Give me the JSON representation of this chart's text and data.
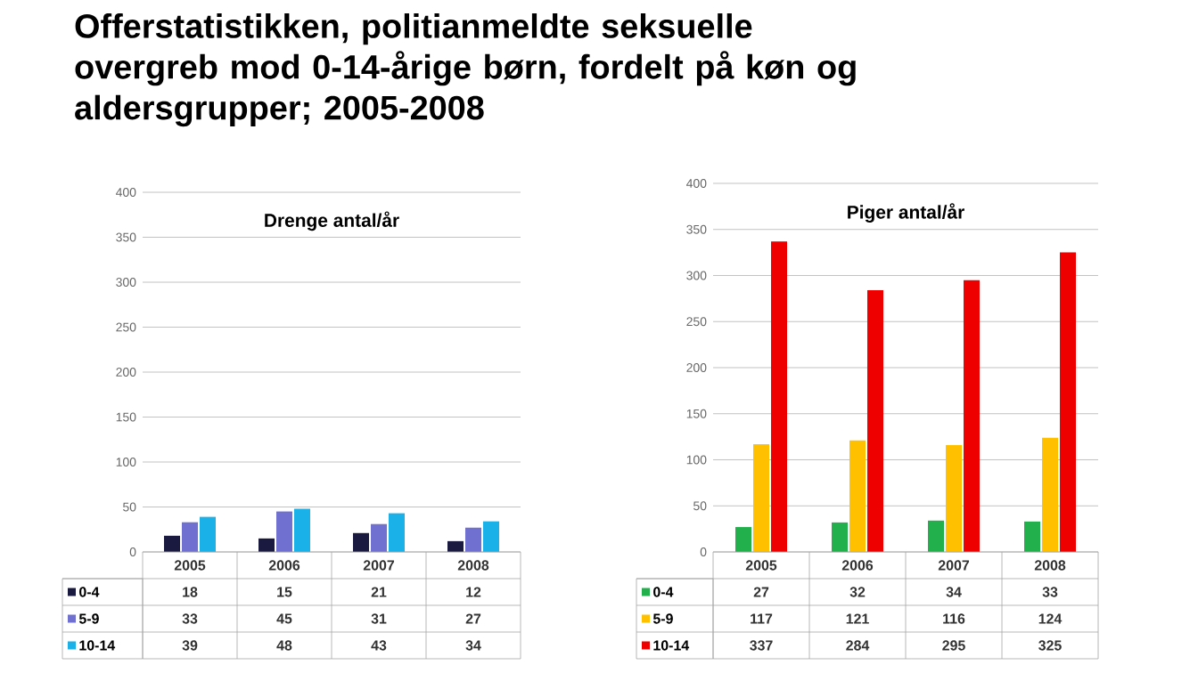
{
  "chart_data": [
    {
      "type": "bar",
      "title": "Offerstatistikken, politianmeldte seksuelle overgreb mod 0-14-årige børn, fordelt på køn og aldersgrupper; 2005-2008",
      "subtitle": "Drenge antal/år",
      "categories": [
        "2005",
        "2006",
        "2007",
        "2008"
      ],
      "series": [
        {
          "name": "0-4",
          "color": "#1a1a40",
          "values": [
            18,
            15,
            21,
            12
          ]
        },
        {
          "name": "5-9",
          "color": "#7070d0",
          "values": [
            33,
            45,
            31,
            27
          ]
        },
        {
          "name": "10-14",
          "color": "#1ab0e8",
          "values": [
            39,
            48,
            43,
            34
          ]
        }
      ],
      "ylim": [
        0,
        400
      ],
      "yticks": [
        0,
        50,
        100,
        150,
        200,
        250,
        300,
        350,
        400
      ],
      "grid": "y",
      "legend": "bottom",
      "data_labels": true
    },
    {
      "type": "bar",
      "title": "Piger antal/år",
      "categories": [
        "2005",
        "2006",
        "2007",
        "2008"
      ],
      "series": [
        {
          "name": "0-4",
          "color": "#22b04c",
          "values": [
            27,
            32,
            34,
            33
          ]
        },
        {
          "name": "5-9",
          "color": "#ffc000",
          "values": [
            117,
            121,
            116,
            124
          ]
        },
        {
          "name": "10-14",
          "color": "#ee0000",
          "values": [
            337,
            284,
            295,
            325
          ]
        }
      ],
      "ylim": [
        0,
        400
      ],
      "yticks": [
        0,
        50,
        100,
        150,
        200,
        250,
        300,
        350,
        400
      ],
      "grid": "y",
      "legend": "bottom",
      "data_labels": true
    }
  ]
}
